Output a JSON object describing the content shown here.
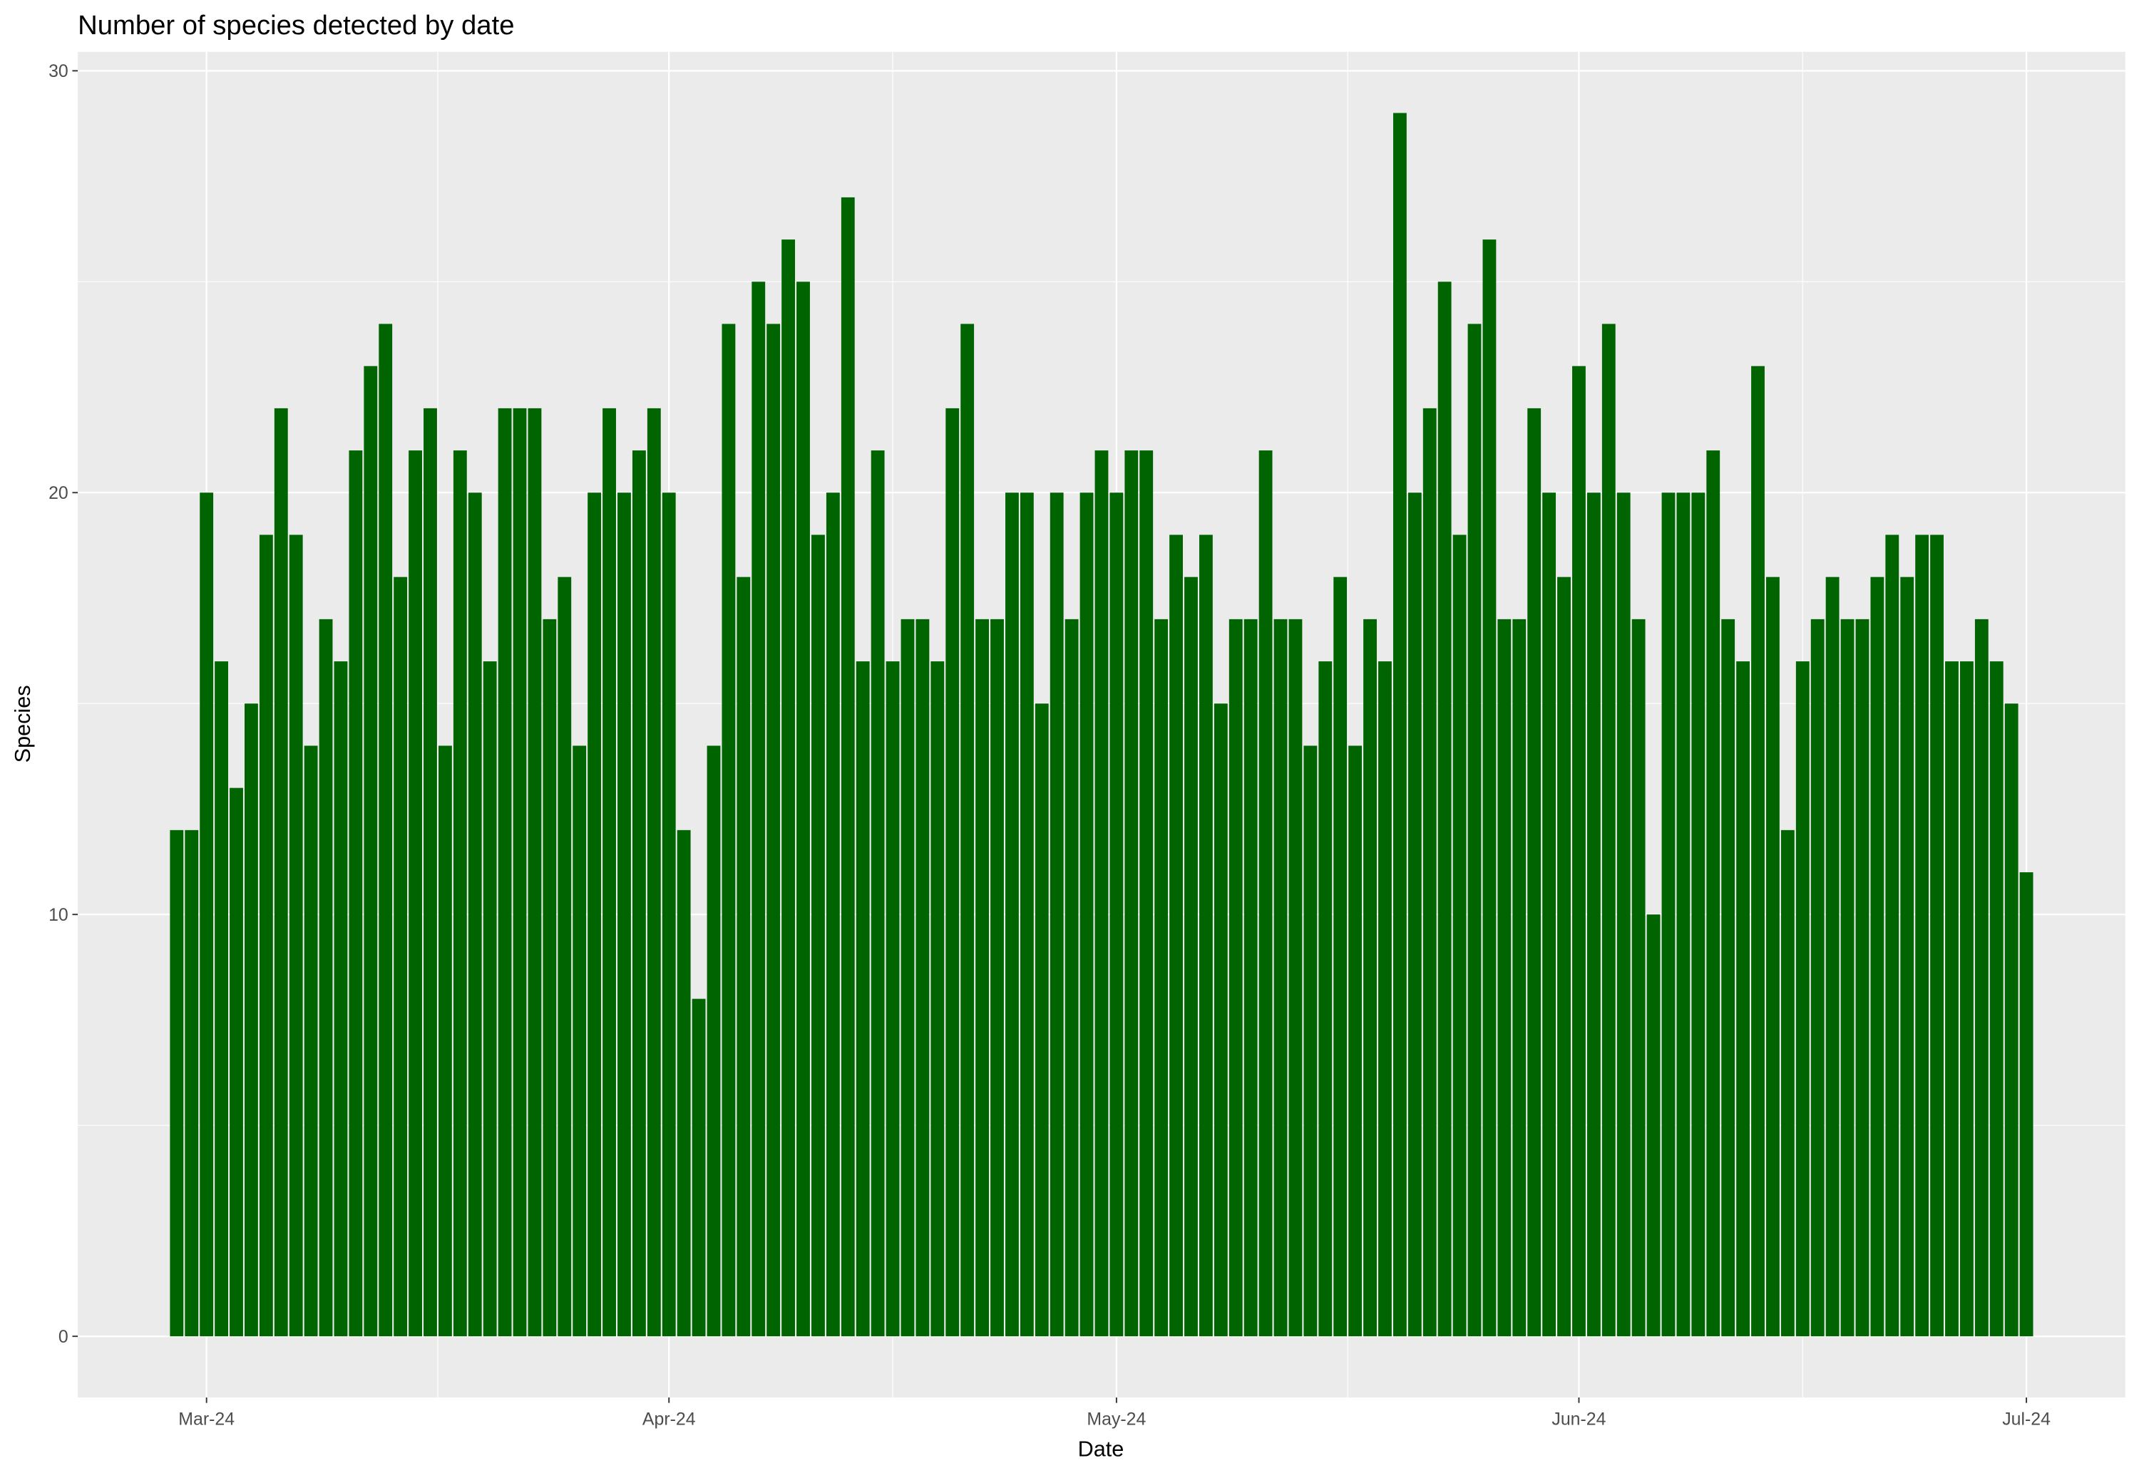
{
  "chart_data": {
    "type": "bar",
    "title": "Number of species detected by date",
    "xlabel": "Date",
    "ylabel": "Species",
    "categories": [
      null,
      null,
      "Mar-24",
      null,
      null,
      null,
      null,
      null,
      null,
      null,
      null,
      null,
      null,
      null,
      null,
      null,
      null,
      null,
      null,
      null,
      null,
      null,
      null,
      null,
      null,
      null,
      null,
      null,
      null,
      null,
      null,
      null,
      null,
      "Apr-24",
      null,
      null,
      null,
      null,
      null,
      null,
      null,
      null,
      null,
      null,
      null,
      null,
      null,
      null,
      null,
      null,
      null,
      null,
      null,
      null,
      null,
      null,
      null,
      null,
      null,
      null,
      null,
      null,
      null,
      "May-24",
      null,
      null,
      null,
      null,
      null,
      null,
      null,
      null,
      null,
      null,
      null,
      null,
      null,
      null,
      null,
      null,
      null,
      null,
      null,
      null,
      null,
      null,
      null,
      null,
      null,
      null,
      null,
      null,
      null,
      null,
      "Jun-24",
      null,
      null,
      null,
      null,
      null,
      null,
      null,
      null,
      null,
      null,
      null,
      null,
      null,
      null,
      null,
      null,
      null,
      null,
      null,
      null,
      null,
      null,
      null,
      null,
      null,
      null,
      null,
      null,
      null,
      "Jul-24"
    ],
    "values": [
      12,
      12,
      20,
      16,
      13,
      15,
      19,
      22,
      19,
      14,
      17,
      16,
      21,
      23,
      24,
      18,
      21,
      22,
      14,
      21,
      20,
      16,
      22,
      22,
      22,
      17,
      18,
      14,
      20,
      22,
      20,
      21,
      22,
      20,
      12,
      8,
      14,
      24,
      18,
      25,
      24,
      26,
      25,
      19,
      20,
      27,
      16,
      21,
      16,
      17,
      17,
      16,
      22,
      24,
      17,
      17,
      20,
      20,
      15,
      20,
      17,
      20,
      21,
      20,
      21,
      21,
      17,
      19,
      18,
      19,
      15,
      17,
      17,
      21,
      17,
      17,
      14,
      16,
      18,
      14,
      17,
      16,
      29,
      20,
      22,
      25,
      19,
      24,
      26,
      17,
      17,
      22,
      20,
      18,
      23,
      20,
      24,
      20,
      17,
      10,
      20,
      20,
      20,
      21,
      17,
      16,
      23,
      18,
      12,
      16,
      17,
      18,
      17,
      17,
      18,
      19,
      18,
      19,
      19,
      16,
      16,
      17,
      16,
      15,
      11
    ],
    "color": "#006400",
    "ylim": [
      -1.45,
      30.45
    ],
    "yticks": [
      0,
      10,
      20,
      30
    ],
    "grid": true
  }
}
